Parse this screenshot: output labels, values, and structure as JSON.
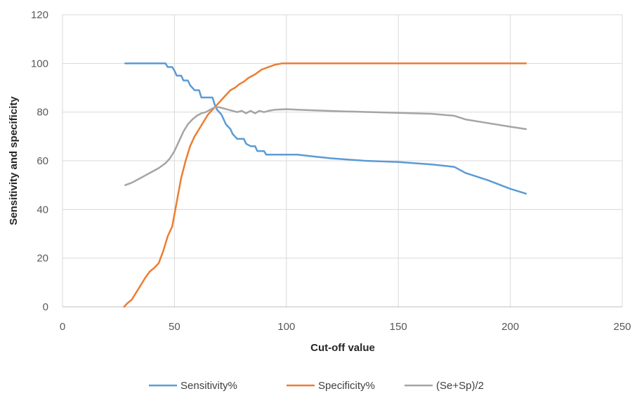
{
  "chart_data": {
    "type": "line",
    "title": "",
    "xlabel": "Cut-off value",
    "ylabel": "Sensitivity and specificity",
    "xlim": [
      0,
      250
    ],
    "ylim": [
      0,
      120
    ],
    "x_ticks": [
      "0",
      "50",
      "100",
      "150",
      "200",
      "250"
    ],
    "y_ticks": [
      "0",
      "20",
      "40",
      "60",
      "80",
      "100",
      "120"
    ],
    "x_tick_values": [
      0,
      50,
      100,
      150,
      200,
      250
    ],
    "y_tick_values": [
      0,
      20,
      40,
      60,
      80,
      100,
      120
    ],
    "grid": true,
    "legend_position": "bottom",
    "series": [
      {
        "name": "Sensitivity%",
        "color": "#5b9bd5",
        "points": [
          [
            28,
            100
          ],
          [
            46,
            100
          ],
          [
            47,
            98.5
          ],
          [
            49,
            98.5
          ],
          [
            50,
            97
          ],
          [
            51,
            95
          ],
          [
            53,
            95
          ],
          [
            54,
            93
          ],
          [
            56,
            93
          ],
          [
            57,
            91
          ],
          [
            59,
            89
          ],
          [
            61,
            89
          ],
          [
            62,
            86
          ],
          [
            67,
            86
          ],
          [
            68,
            83
          ],
          [
            69,
            81
          ],
          [
            71,
            79
          ],
          [
            72,
            77
          ],
          [
            73,
            75
          ],
          [
            75,
            73
          ],
          [
            76,
            71
          ],
          [
            78,
            69
          ],
          [
            81,
            69
          ],
          [
            82,
            67
          ],
          [
            84,
            66
          ],
          [
            86,
            66
          ],
          [
            87,
            64
          ],
          [
            90,
            64
          ],
          [
            91,
            62.5
          ],
          [
            100,
            62.5
          ],
          [
            105,
            62.5
          ],
          [
            110,
            62
          ],
          [
            120,
            61
          ],
          [
            135,
            60
          ],
          [
            150,
            59.5
          ],
          [
            165,
            58.5
          ],
          [
            175,
            57.5
          ],
          [
            180,
            55
          ],
          [
            190,
            52
          ],
          [
            200,
            48.5
          ],
          [
            207,
            46.5
          ]
        ]
      },
      {
        "name": "Specificity%",
        "color": "#ed7d31",
        "points": [
          [
            27.5,
            0
          ],
          [
            29,
            1.5
          ],
          [
            31,
            3
          ],
          [
            33,
            6
          ],
          [
            35,
            9
          ],
          [
            37,
            12
          ],
          [
            39,
            14.5
          ],
          [
            41,
            16
          ],
          [
            43,
            18
          ],
          [
            45,
            23
          ],
          [
            47,
            29
          ],
          [
            49,
            33
          ],
          [
            51,
            43
          ],
          [
            53,
            53
          ],
          [
            55,
            60
          ],
          [
            57,
            66
          ],
          [
            59,
            70
          ],
          [
            61,
            73
          ],
          [
            63,
            76
          ],
          [
            65,
            79
          ],
          [
            67,
            81
          ],
          [
            69,
            83
          ],
          [
            71,
            85
          ],
          [
            73,
            87
          ],
          [
            75,
            89
          ],
          [
            77,
            90
          ],
          [
            79,
            91.5
          ],
          [
            81,
            92.5
          ],
          [
            83,
            94
          ],
          [
            86,
            95.5
          ],
          [
            89,
            97.5
          ],
          [
            92,
            98.5
          ],
          [
            95,
            99.5
          ],
          [
            98,
            100
          ],
          [
            207,
            100
          ]
        ]
      },
      {
        "name": "(Se+Sp)/2",
        "color": "#a5a5a5",
        "points": [
          [
            28,
            50
          ],
          [
            31,
            51
          ],
          [
            34,
            52.5
          ],
          [
            37,
            54
          ],
          [
            40,
            55.5
          ],
          [
            43,
            57
          ],
          [
            46,
            59
          ],
          [
            48,
            61
          ],
          [
            50,
            64
          ],
          [
            52,
            68
          ],
          [
            54,
            72
          ],
          [
            56,
            75
          ],
          [
            58,
            77
          ],
          [
            60,
            78.5
          ],
          [
            62,
            79.5
          ],
          [
            64,
            80
          ],
          [
            66,
            81
          ],
          [
            68,
            82
          ],
          [
            70,
            82
          ],
          [
            72,
            81.5
          ],
          [
            74,
            81
          ],
          [
            76,
            80.5
          ],
          [
            78,
            80
          ],
          [
            80,
            80.5
          ],
          [
            82,
            79.5
          ],
          [
            84,
            80.5
          ],
          [
            86,
            79.5
          ],
          [
            88,
            80.5
          ],
          [
            90,
            80
          ],
          [
            92,
            80.5
          ],
          [
            95,
            81
          ],
          [
            100,
            81.2
          ],
          [
            105,
            81
          ],
          [
            110,
            80.8
          ],
          [
            125,
            80.3
          ],
          [
            150,
            79.7
          ],
          [
            165,
            79.3
          ],
          [
            175,
            78.5
          ],
          [
            180,
            77
          ],
          [
            190,
            75.5
          ],
          [
            200,
            74
          ],
          [
            207,
            73
          ]
        ]
      }
    ]
  }
}
